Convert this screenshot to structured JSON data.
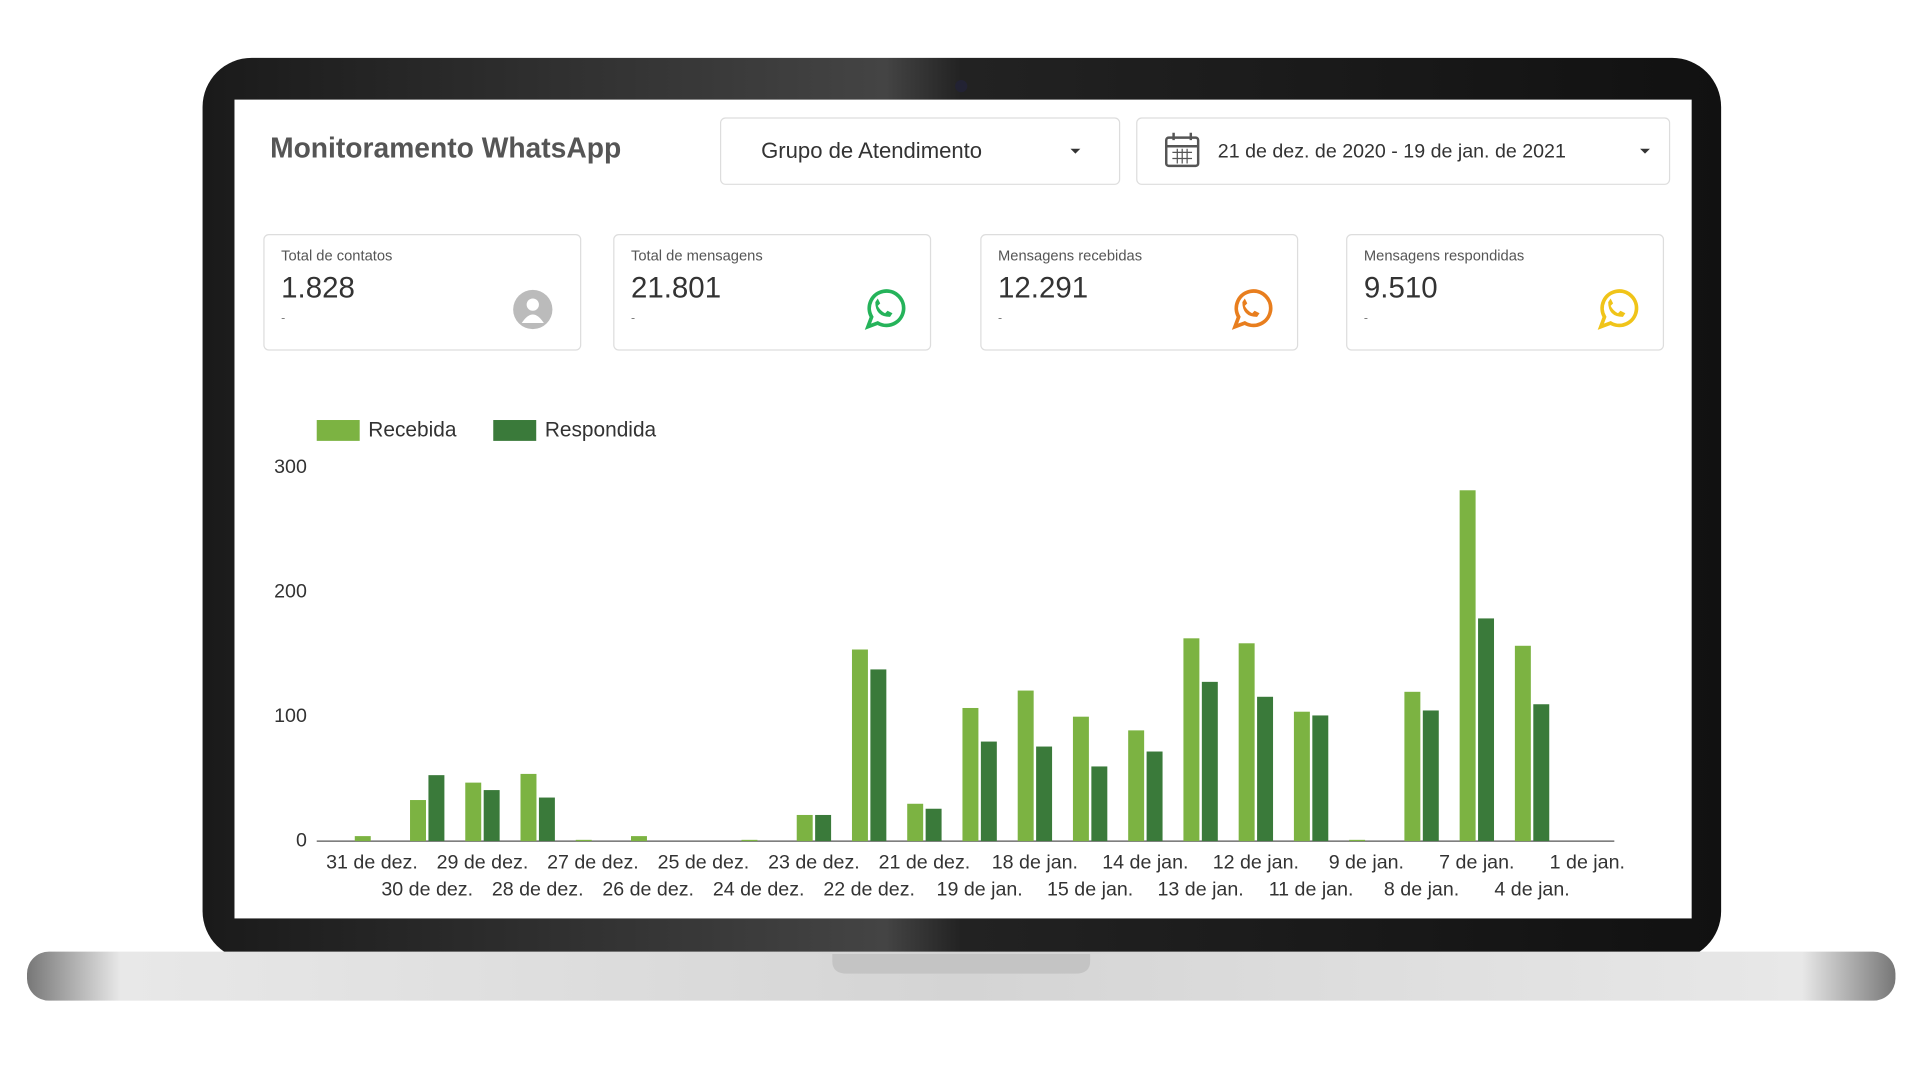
{
  "header": {
    "title": "Monitoramento WhatsApp",
    "group_filter": "Grupo de Atendimento",
    "date_range": "21 de dez. de 2020 - 19 de jan. de 2021"
  },
  "cards": [
    {
      "label": "Total de contatos",
      "value": "1.828",
      "sub": "-"
    },
    {
      "label": "Total de mensagens",
      "value": "21.801",
      "sub": "-"
    },
    {
      "label": "Mensagens recebidas",
      "value": "12.291",
      "sub": "-"
    },
    {
      "label": "Mensagens respondidas",
      "value": "9.510",
      "sub": "-"
    }
  ],
  "chart_data": {
    "type": "bar",
    "categories": [
      "31 de dez.",
      "30 de dez.",
      "29 de dez.",
      "28 de dez.",
      "27 de dez.",
      "26 de dez.",
      "25 de dez.",
      "24 de dez.",
      "23 de dez.",
      "22 de dez.",
      "21 de dez.",
      "19 de jan.",
      "18 de jan.",
      "15 de jan.",
      "14 de jan.",
      "13 de jan.",
      "12 de jan.",
      "11 de jan.",
      "9 de jan.",
      "8 de jan.",
      "7 de jan.",
      "4 de jan.",
      "1 de jan."
    ],
    "series": [
      {
        "name": "Recebida",
        "color": "#7cb342",
        "values": [
          4,
          33,
          47,
          54,
          1,
          4,
          0,
          1,
          21,
          154,
          30,
          107,
          121,
          100,
          89,
          163,
          159,
          104,
          1,
          120,
          282,
          157,
          0
        ]
      },
      {
        "name": "Respondida",
        "color": "#3a7a3a",
        "values": [
          0,
          53,
          41,
          35,
          0,
          0,
          0,
          0,
          21,
          138,
          26,
          80,
          76,
          60,
          72,
          128,
          116,
          101,
          0,
          105,
          179,
          110,
          0
        ]
      }
    ],
    "ylim": [
      0,
      300
    ],
    "yticks": [
      0,
      100,
      200,
      300
    ],
    "grid": false,
    "legend": "top-left"
  }
}
